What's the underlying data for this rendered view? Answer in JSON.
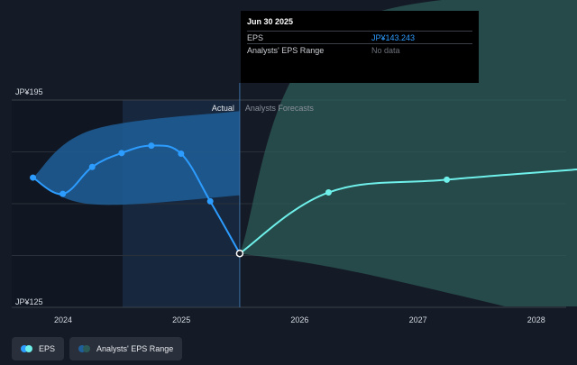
{
  "chart_data": {
    "type": "line",
    "y_axis": {
      "min": 125,
      "max": 195,
      "tick_labels": [
        "JP¥195",
        "JP¥125"
      ]
    },
    "x_axis": {
      "tick_labels": [
        "2024",
        "2025",
        "2026",
        "2027",
        "2028"
      ]
    },
    "region_labels": {
      "actual": "Actual",
      "forecast": "Analysts Forecasts"
    },
    "series": [
      {
        "name": "EPS",
        "color": "#2d9cff",
        "points": [
          {
            "x": "2023-09-30",
            "y": 168.8
          },
          {
            "x": "2023-12-31",
            "y": 163.3
          },
          {
            "x": "2024-03-31",
            "y": 172.4
          },
          {
            "x": "2024-06-30",
            "y": 177.1
          },
          {
            "x": "2024-09-30",
            "y": 179.6
          },
          {
            "x": "2024-12-31",
            "y": 176.9
          },
          {
            "x": "2025-03-31",
            "y": 160.8
          },
          {
            "x": "2025-06-30",
            "y": 143.2
          }
        ]
      },
      {
        "name": "EPS (forecast)",
        "color": "#6ff0ea",
        "points": [
          {
            "x": "2025-06-30",
            "y": 143.2
          },
          {
            "x": "2026-03-31",
            "y": 163.8
          },
          {
            "x": "2027-03-31",
            "y": 168.1
          },
          {
            "x": "2028-06-30",
            "y": 172.0
          }
        ]
      }
    ],
    "range_actual": {
      "color": "#1f5f99",
      "upper": [
        {
          "x": "2023-09-30",
          "y": 168.8
        },
        {
          "x": "2024-03-31",
          "y": 184.9
        },
        {
          "x": "2025-06-30",
          "y": 191.3
        }
      ],
      "lower": [
        {
          "x": "2023-09-30",
          "y": 168.8
        },
        {
          "x": "2024-03-31",
          "y": 159.8
        },
        {
          "x": "2025-06-30",
          "y": 162.8
        }
      ]
    },
    "range_forecast": {
      "color": "#2c5b57",
      "upper": [
        {
          "x": "2025-06-30",
          "y": 143.2
        },
        {
          "x": "2026-03-31",
          "y": 217.2
        },
        {
          "x": "2028-06-30",
          "y": 232.0
        }
      ],
      "lower": [
        {
          "x": "2025-06-30",
          "y": 143.2
        },
        {
          "x": "2026-06-30",
          "y": 136.8
        },
        {
          "x": "2028-06-30",
          "y": 118.0
        }
      ]
    },
    "tooltip": {
      "date": "Jun 30 2025",
      "rows": [
        {
          "label": "EPS",
          "value": "JP¥143.243"
        },
        {
          "label": "Analysts' EPS Range",
          "value": "No data"
        }
      ]
    },
    "legend": [
      {
        "label": "EPS",
        "colors": [
          "#2d9cff",
          "#6ff0ea"
        ]
      },
      {
        "label": "Analysts' EPS Range",
        "colors": [
          "#1f5f99",
          "#2c5b57"
        ]
      }
    ]
  }
}
